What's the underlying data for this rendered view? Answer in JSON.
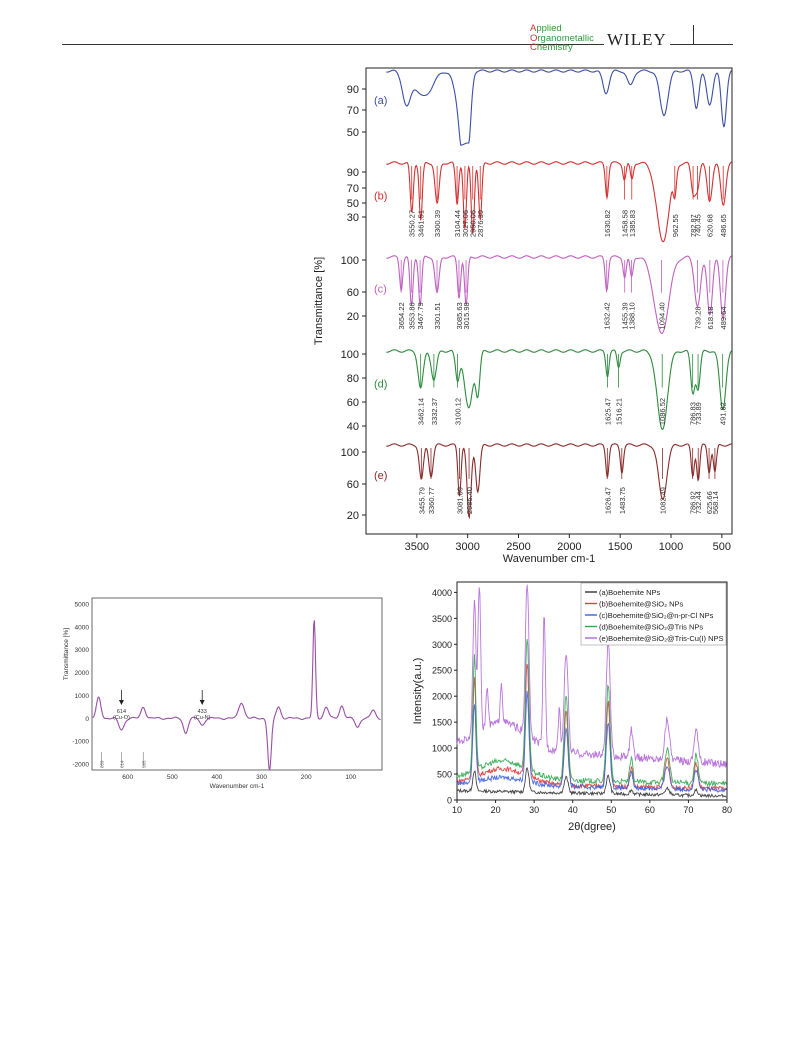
{
  "header": {
    "journal_letters": [
      "A",
      "O",
      "C"
    ],
    "journal_rest": [
      "pplied",
      "rganometallic",
      "hemistry"
    ],
    "publisher": "WILEY"
  },
  "figure_ftir": {
    "ylabel": "Transmittance [%]",
    "xlabel": "Wavenumber cm-1",
    "x_ticks": [
      "3500",
      "3000",
      "2500",
      "2000",
      "1500",
      "1000",
      "500"
    ],
    "panels": [
      {
        "id": "a",
        "label": "(a)",
        "color": "#3b4fa8",
        "ticks": [
          "90",
          "70",
          "50"
        ],
        "peaks": []
      },
      {
        "id": "b",
        "label": "(b)",
        "color": "#d43131",
        "ticks": [
          "90",
          "70",
          "50",
          "30"
        ],
        "peaks": [
          "3550.27",
          "3461.51",
          "3300.39",
          "3104.44",
          "3027.06",
          "2950.06",
          "2876.39",
          "1630.82",
          "1458.58",
          "1385.83",
          "962.55",
          "782.87",
          "740.45",
          "620.68",
          "486.65"
        ]
      },
      {
        "id": "c",
        "label": "(c)",
        "color": "#c061c0",
        "ticks": [
          "100",
          "60",
          "20"
        ],
        "peaks": [
          "3654.22",
          "3553.86",
          "3467.79",
          "3301.51",
          "3085.63",
          "3015.98",
          "1632.42",
          "1455.39",
          "1388.10",
          "1094.40",
          "739.28",
          "618.18",
          "489.64"
        ]
      },
      {
        "id": "d",
        "label": "(d)",
        "color": "#2e8b3e",
        "ticks": [
          "100",
          "80",
          "60",
          "40"
        ],
        "peaks": [
          "3462.14",
          "3332.37",
          "3100.12",
          "1625.47",
          "1516.21",
          "1086.52",
          "786.83",
          "733.89",
          "491.82"
        ]
      },
      {
        "id": "e",
        "label": "(e)",
        "color": "#8a2b2b",
        "ticks": [
          "100",
          "60",
          "20"
        ],
        "peaks": [
          "3455.79",
          "3360.77",
          "3081.09",
          "2986.40",
          "1626.47",
          "1483.75",
          "1082.49",
          "786.92",
          "732.44",
          "625.66",
          "568.14"
        ]
      }
    ]
  },
  "figure_farir": {
    "ylabel": "Transmittance [%]",
    "xlabel": "Wavenumber cm-1",
    "y_ticks": [
      "5000",
      "4000",
      "3000",
      "2000",
      "1000",
      "0",
      "-1000",
      "-2000"
    ],
    "x_ticks": [
      "600",
      "500",
      "400",
      "300",
      "200",
      "100"
    ],
    "line_color": "#9a4fa6",
    "annotations": [
      {
        "value": "614",
        "label": "(Cu-O)"
      },
      {
        "value": "433",
        "label": "(Cu-N)"
      }
    ],
    "bottom_peaks": [
      "659",
      "614",
      "565"
    ]
  },
  "figure_xrd": {
    "ylabel": "Intensity(a.u.)",
    "xlabel": "2θ(dgree)",
    "y_ticks": [
      "0",
      "500",
      "1000",
      "1500",
      "2000",
      "2500",
      "3000",
      "3500",
      "4000"
    ],
    "x_ticks": [
      "10",
      "20",
      "30",
      "40",
      "50",
      "60",
      "70",
      "80"
    ],
    "legend": [
      {
        "label": "(a)Boehemite NPs",
        "color": "#333333"
      },
      {
        "label": "(b)Boehemite@SiO₂ NPs",
        "color": "#e23b3b"
      },
      {
        "label": "(c)Boehemite@SiO₂@n-pr-Cl NPs",
        "color": "#3b5fe2"
      },
      {
        "label": "(d)Boehemite@SiO₂@Tris NPs",
        "color": "#2fa84f"
      },
      {
        "label": "(e)Boehemite@SiO₂@Tris-Cu(I) NPS",
        "color": "#b266d9"
      }
    ]
  }
}
